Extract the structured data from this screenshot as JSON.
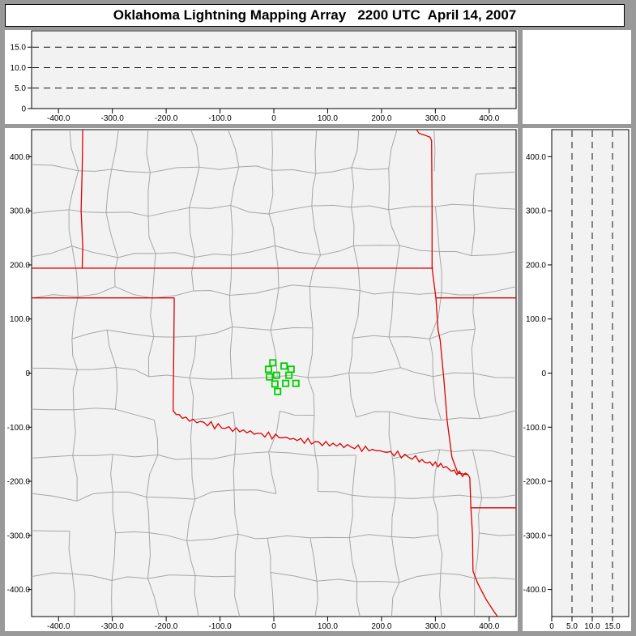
{
  "window": {
    "title": "Oklahoma Lightning Mapping Array   2200 UTC  April 14, 2007"
  },
  "colors": {
    "frame": "#999999",
    "panel_bg": "#ffffff",
    "plot_bg": "#f2f2f2",
    "axis": "#000000",
    "grid_dash": "#111111",
    "county_line": "#a6a6a6",
    "state_border": "#dd0000",
    "station_marker": "#00cc00"
  },
  "axes": {
    "horizontal_km": {
      "range": [
        -450,
        450
      ],
      "values": [
        -400,
        -300,
        -200,
        -100,
        0,
        100,
        200,
        300,
        400
      ],
      "labels": [
        "-400.0",
        "-300.0",
        "-200.0",
        "-100.0",
        "0",
        "100.0",
        "200.0",
        "300.0",
        "400.0"
      ]
    },
    "vertical_km": {
      "range": [
        -450,
        450
      ],
      "values": [
        -400,
        -300,
        -200,
        -100,
        0,
        100,
        200,
        300,
        400
      ],
      "labels": [
        "-400.0",
        "-300.0",
        "-200.0",
        "-100.0",
        "0",
        "100.0",
        "200.0",
        "300.0",
        "400.0"
      ]
    },
    "altitude_km": {
      "range": [
        0,
        19
      ],
      "values": [
        0,
        5,
        10,
        15
      ],
      "labels": [
        "0",
        "5.0",
        "10.0",
        "15.0"
      ],
      "gridlines": [
        5,
        10,
        15
      ]
    }
  },
  "chart_data": {
    "type": "scatter",
    "title": "Oklahoma Lightning Mapping Array 2200 UTC April 14, 2007",
    "panels": [
      "altitude_vs_east_west_top",
      "plan_view_map_center",
      "altitude_vs_north_south_right",
      "blank_corner"
    ],
    "x_range_km": [
      -450,
      450
    ],
    "y_range_km": [
      -450,
      450
    ],
    "altitude_range_km": [
      0,
      19
    ],
    "altitude_gridlines_km": [
      5,
      10,
      15
    ],
    "lightning_sources": [],
    "lma_stations_km": [
      [
        -2,
        19
      ],
      [
        19,
        13
      ],
      [
        32,
        7
      ],
      [
        -10,
        7
      ],
      [
        5,
        -4
      ],
      [
        -8,
        -7
      ],
      [
        28,
        -4
      ],
      [
        2,
        -20
      ],
      [
        22,
        -19
      ],
      [
        41,
        -19
      ],
      [
        7,
        -34
      ]
    ],
    "state_borders_km": [
      [
        [
          -355,
          450
        ],
        [
          -356,
          380
        ],
        [
          -358,
          300
        ],
        [
          -355,
          235
        ],
        [
          -356,
          194
        ]
      ],
      [
        [
          -450,
          194
        ],
        [
          296,
          194
        ]
      ],
      [
        [
          -450,
          139
        ],
        [
          -185,
          139
        ]
      ],
      [
        [
          -185,
          139
        ],
        [
          -186,
          30
        ],
        [
          -187,
          -71
        ]
      ],
      [
        [
          263,
          453
        ],
        [
          270,
          443
        ],
        [
          280,
          440
        ],
        [
          290,
          436
        ],
        [
          293,
          430
        ],
        [
          294,
          300
        ],
        [
          294,
          194
        ],
        [
          301,
          139
        ],
        [
          305,
          80
        ],
        [
          309,
          61
        ],
        [
          316,
          -14
        ],
        [
          322,
          -89
        ],
        [
          331,
          -156
        ],
        [
          342,
          -185
        ],
        [
          361,
          -188
        ]
      ],
      [
        [
          301,
          139
        ],
        [
          450,
          139
        ]
      ],
      [
        [
          361,
          -188
        ],
        [
          364,
          -194
        ],
        [
          366,
          -249
        ],
        [
          369,
          -299
        ],
        [
          370,
          -366
        ],
        [
          379,
          -389
        ],
        [
          394,
          -418
        ],
        [
          409,
          -441
        ],
        [
          417,
          -452
        ]
      ],
      [
        [
          366,
          -249
        ],
        [
          450,
          -249
        ]
      ]
    ],
    "red_river_km": [
      [
        -187,
        -71
      ],
      [
        -170,
        -82
      ],
      [
        -150,
        -88
      ],
      [
        -130,
        -92
      ],
      [
        -110,
        -97
      ],
      [
        -90,
        -101
      ],
      [
        -70,
        -105
      ],
      [
        -50,
        -108
      ],
      [
        -30,
        -112
      ],
      [
        -10,
        -115
      ],
      [
        10,
        -118
      ],
      [
        30,
        -121
      ],
      [
        50,
        -124
      ],
      [
        70,
        -127
      ],
      [
        90,
        -130
      ],
      [
        110,
        -132
      ],
      [
        130,
        -134
      ],
      [
        150,
        -137
      ],
      [
        170,
        -140
      ],
      [
        190,
        -143
      ],
      [
        210,
        -146
      ],
      [
        230,
        -150
      ],
      [
        250,
        -155
      ],
      [
        270,
        -159
      ],
      [
        285,
        -163
      ],
      [
        300,
        -168
      ],
      [
        315,
        -174
      ],
      [
        330,
        -180
      ],
      [
        345,
        -184
      ],
      [
        361,
        -188
      ]
    ]
  }
}
